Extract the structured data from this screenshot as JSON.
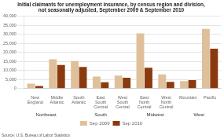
{
  "chart_data": {
    "type": "bar",
    "title": "Initial claimants for unemployment insurance, by census region and division,\nnot seasonally adjusted, September 2009 & September 2010",
    "categories": [
      "New\nEngland",
      "Middle\nAtlantic",
      "South\nAtlantic",
      "East\nSouth\nCentral",
      "West\nSouth\nCentral",
      "East\nNorth\nCentral",
      "West\nNorth\nCentral",
      "Mountain",
      "Pacific"
    ],
    "series": [
      {
        "name": "Sep 2009",
        "color": "#dfc09a",
        "values": [
          2800,
          16200,
          15200,
          6700,
          7200,
          30500,
          7800,
          4200,
          33000
        ]
      },
      {
        "name": "Sep 2010",
        "color": "#8b3a0f",
        "values": [
          1400,
          13000,
          12000,
          3500,
          6000,
          11500,
          3700,
          4700,
          22000
        ]
      }
    ],
    "ylim": [
      0,
      40000
    ],
    "yticks": [
      0,
      {
        "value": 5000,
        "label": "5,000"
      },
      {
        "value": 10000,
        "label": "10,000"
      },
      {
        "value": 15000,
        "label": "15,000"
      },
      {
        "value": 20000,
        "label": "20,000"
      },
      {
        "value": 25000,
        "label": "25,000"
      },
      {
        "value": 30000,
        "label": "30,000"
      },
      {
        "value": 35000,
        "label": "35,000"
      },
      {
        "value": 40000,
        "label": "40,000"
      }
    ],
    "grid": true,
    "legend": "bottom",
    "annotations": [
      {
        "text": "Northeast",
        "x": 0.5
      },
      {
        "text": "South",
        "x": 3.0
      },
      {
        "text": "Midwest",
        "x": 5.5
      },
      {
        "text": "West",
        "x": 7.5
      },
      {
        "text": "Source:\nU.S.\nBureau\nof Labor\nStatistics"
      }
    ]
  }
}
